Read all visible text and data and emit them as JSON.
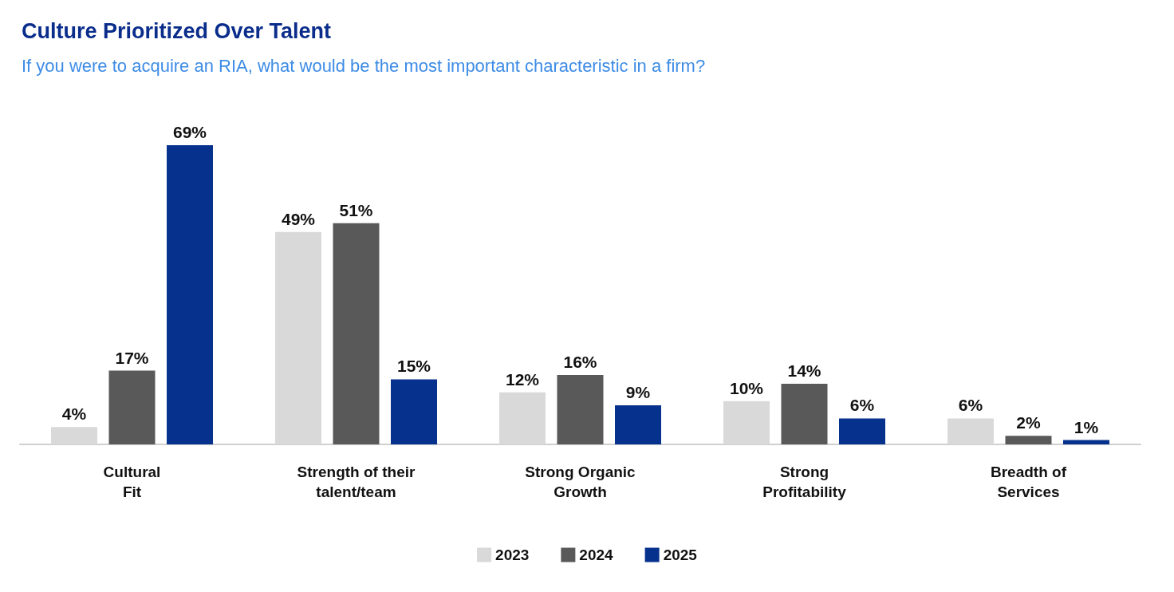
{
  "chart_data": {
    "type": "bar",
    "title": "Culture Prioritized Over Talent",
    "subtitle": "If you were to acquire an RIA, what would be the most important characteristic in a firm?",
    "categories": [
      "Cultural\nFit",
      "Strength of their\ntalent/team",
      "Strong Organic\nGrowth",
      "Strong\nProfitability",
      "Breadth of\nServices"
    ],
    "series": [
      {
        "name": "2023",
        "color": "#d9d9d9",
        "values": [
          4,
          49,
          12,
          10,
          6
        ],
        "value_labels": [
          "4%",
          "49%",
          "12%",
          "10%",
          "6%"
        ]
      },
      {
        "name": "2024",
        "color": "#595959",
        "values": [
          17,
          51,
          16,
          14,
          2
        ],
        "value_labels": [
          "17%",
          "51%",
          "16%",
          "14%",
          "2%"
        ]
      },
      {
        "name": "2025",
        "color": "#06318c",
        "values": [
          69,
          15,
          9,
          6,
          1
        ],
        "value_labels": [
          "69%",
          "15%",
          "9%",
          "6%",
          "1%"
        ]
      }
    ],
    "legend": "bottom"
  }
}
